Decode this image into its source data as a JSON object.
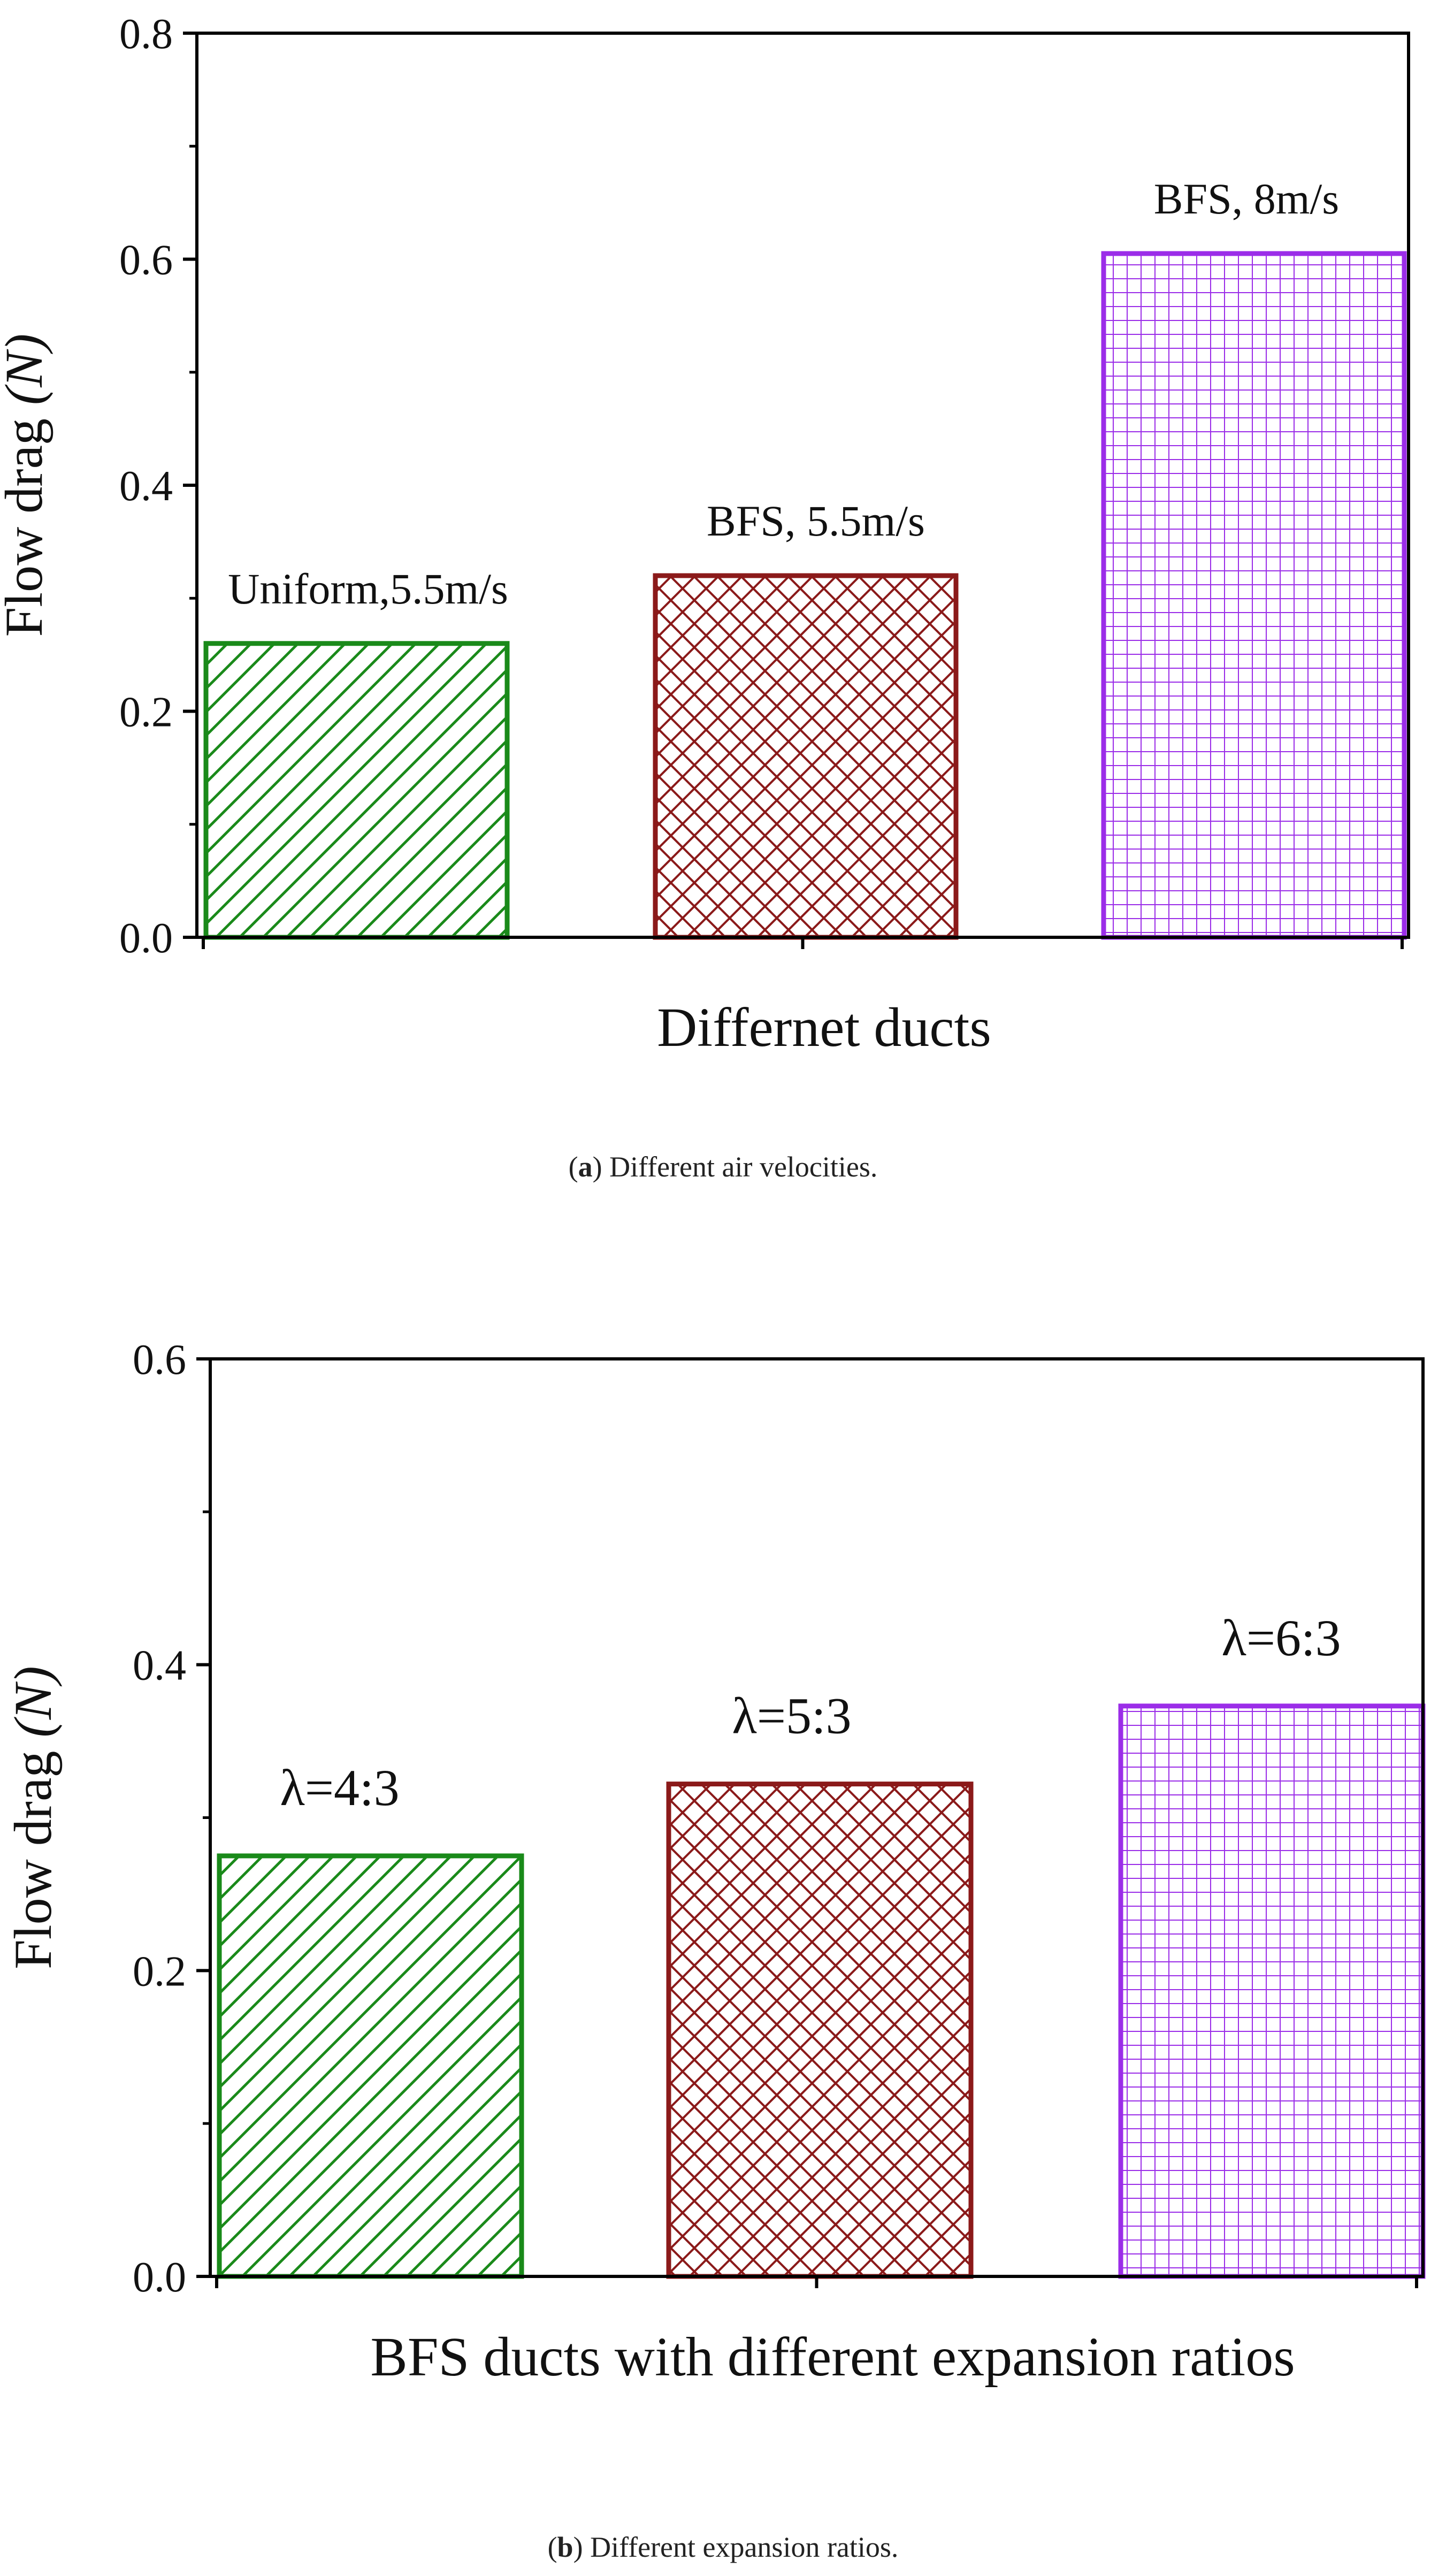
{
  "figure": {
    "captions": [
      {
        "letter": "a",
        "text": " Different air velocities."
      },
      {
        "letter": "b",
        "text": " Different expansion ratios."
      }
    ]
  },
  "colors": {
    "green": "#1a8a1a",
    "maroon": "#8b1a1a",
    "purple": "#9b2de8"
  },
  "chart_data": [
    {
      "type": "bar",
      "title": "",
      "xlabel": "Differnet ducts",
      "ylabel": "Flow drag",
      "ylabel_unit": "(N)",
      "ylim": [
        0,
        0.8
      ],
      "yticks": [
        "0.0",
        "0.2",
        "0.4",
        "0.6",
        "0.8"
      ],
      "categories": [
        "Uniform,5.5m/s",
        "BFS, 5.5m/s",
        "BFS, 8m/s"
      ],
      "values": [
        0.26,
        0.32,
        0.605
      ],
      "patterns": [
        "diagonal",
        "crosshatch",
        "grid"
      ],
      "bar_colors": [
        "green",
        "maroon",
        "purple"
      ]
    },
    {
      "type": "bar",
      "title": "",
      "xlabel": "BFS ducts with different expansion ratios",
      "ylabel": "Flow drag",
      "ylabel_unit": "(N)",
      "ylim": [
        0,
        0.6
      ],
      "yticks": [
        "0.0",
        "0.2",
        "0.4",
        "0.6"
      ],
      "categories": [
        "λ=4:3",
        "λ=5:3",
        "λ=6:3"
      ],
      "values": [
        0.275,
        0.322,
        0.373
      ],
      "patterns": [
        "diagonal",
        "crosshatch",
        "grid"
      ],
      "bar_colors": [
        "green",
        "maroon",
        "purple"
      ]
    }
  ]
}
